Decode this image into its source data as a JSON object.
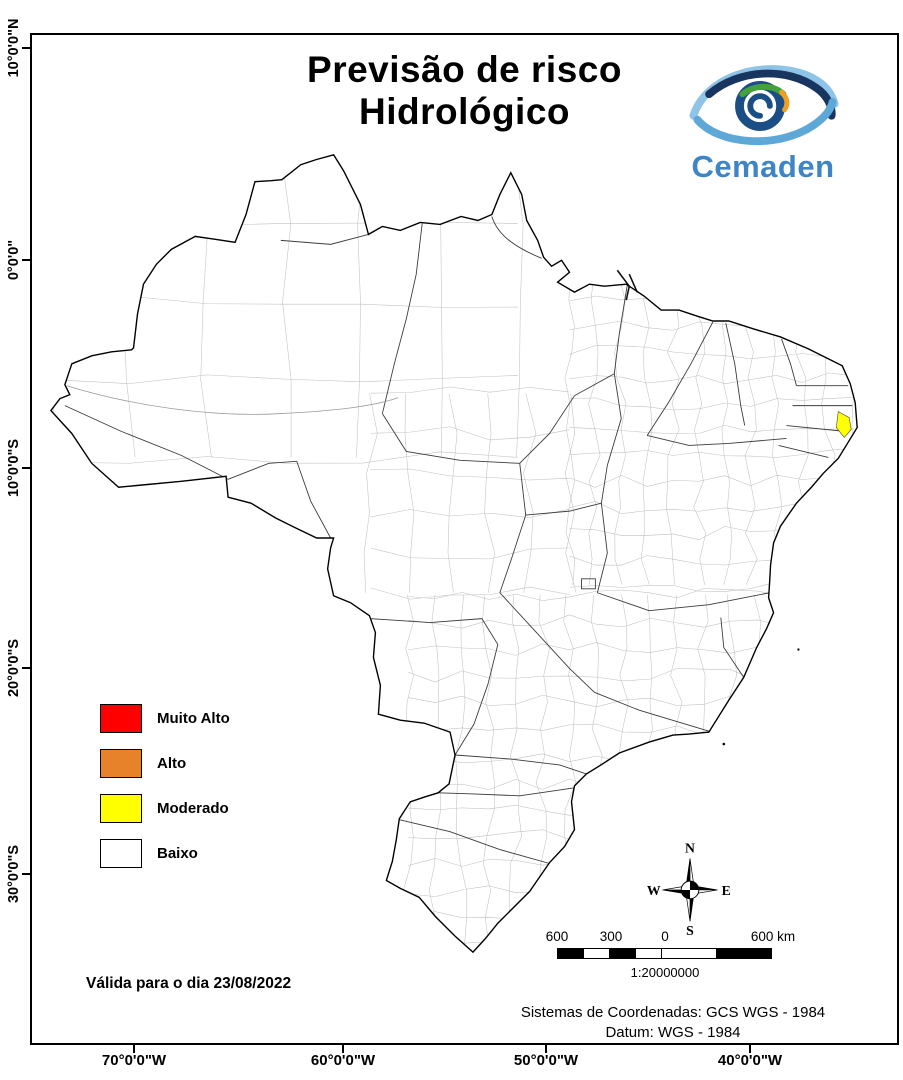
{
  "title": {
    "line1": "Previsão de risco",
    "line2": "Hidrológico"
  },
  "logo": {
    "brand": "Cemaden"
  },
  "legend": {
    "items": [
      {
        "label": "Muito Alto",
        "color": "#fe0000"
      },
      {
        "label": "Alto",
        "color": "#e8822a"
      },
      {
        "label": "Moderado",
        "color": "#ffff00"
      },
      {
        "label": "Baixo",
        "color": "#ffffff"
      }
    ]
  },
  "validity": {
    "text": "Válida para o dia 23/08/2022"
  },
  "compass": {
    "north": "N",
    "south": "S",
    "east": "E",
    "west": "W"
  },
  "scale_bar": {
    "labels": [
      "600",
      "300",
      "0",
      "600 km"
    ],
    "ratio_text": "1:20000000"
  },
  "footer": {
    "line1": "Sistemas de Coordenadas: GCS WGS - 1984",
    "line2": "Datum: WGS - 1984"
  },
  "axes": {
    "left": [
      "10°0'0\"N",
      "0°0'0\"",
      "10°0'0\"S",
      "20°0'0\"S",
      "30°0'0\"S"
    ],
    "bottom": [
      "70°0'0\"W",
      "60°0'0\"W",
      "50°0'0\"W",
      "40°0'0\"W"
    ]
  },
  "map": {
    "highlight_color": "#ffff00"
  },
  "colors": {
    "brand_blue": "#3d85c5"
  }
}
